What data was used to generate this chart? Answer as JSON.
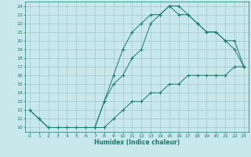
{
  "xlabel": "Humidex (Indice chaleur)",
  "line_color": "#1a7a6e",
  "bg_color": "#c8e8ec",
  "grid_color": "#a0c8d0",
  "xlim": [
    -0.5,
    23.5
  ],
  "ylim": [
    9.5,
    24.5
  ],
  "xticks": [
    0,
    1,
    2,
    3,
    4,
    5,
    6,
    7,
    8,
    9,
    10,
    11,
    12,
    13,
    14,
    15,
    16,
    17,
    18,
    19,
    20,
    21,
    22,
    23
  ],
  "yticks": [
    10,
    11,
    12,
    13,
    14,
    15,
    16,
    17,
    18,
    19,
    20,
    21,
    22,
    23,
    24
  ],
  "line1_x": [
    0,
    1,
    2,
    3,
    4,
    5,
    6,
    7,
    8,
    9,
    10,
    11,
    12,
    13,
    14,
    15,
    16,
    17,
    18,
    19,
    20,
    21,
    22,
    23
  ],
  "line1_y": [
    12,
    11,
    10,
    10,
    10,
    10,
    10,
    10,
    13,
    16,
    19,
    21,
    22,
    23,
    23,
    24,
    24,
    23,
    22,
    21,
    21,
    20,
    19,
    17
  ],
  "line2_x": [
    0,
    1,
    2,
    3,
    4,
    5,
    6,
    7,
    8,
    9,
    10,
    11,
    12,
    13,
    14,
    15,
    16,
    17,
    18,
    19,
    20,
    21,
    22,
    23
  ],
  "line2_y": [
    12,
    11,
    10,
    10,
    10,
    10,
    10,
    10,
    10,
    11,
    12,
    13,
    13,
    14,
    14,
    15,
    15,
    16,
    16,
    16,
    16,
    16,
    17,
    17
  ],
  "line3_x": [
    7,
    8,
    9,
    10,
    11,
    12,
    13,
    14,
    15,
    16,
    17,
    18,
    19,
    20,
    21,
    22,
    23
  ],
  "line3_y": [
    10,
    13,
    15,
    16,
    18,
    19,
    22,
    23,
    24,
    23,
    23,
    22,
    21,
    21,
    20,
    20,
    17
  ],
  "marker": "+",
  "marker_size": 3.5,
  "marker_ew": 0.8,
  "line_width": 0.7,
  "tick_fontsize": 4.5,
  "xlabel_fontsize": 5.5
}
